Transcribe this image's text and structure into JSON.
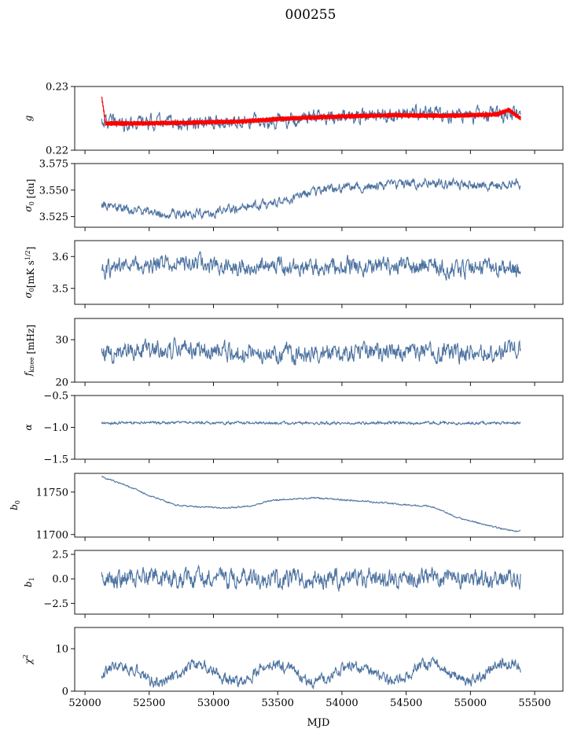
{
  "title": "000255",
  "colors": {
    "series": "#4c72a0",
    "fit": "#ff0000",
    "axis": "#000000"
  },
  "chart_data": {
    "type": "line",
    "title": "000255",
    "xlabel": "MJD",
    "xlim": [
      51920,
      55720
    ],
    "x_ticks": [
      52000,
      52500,
      53000,
      53500,
      54000,
      54500,
      55000,
      55500
    ],
    "x_tick_labels": [
      "52000",
      "52500",
      "53000",
      "53500",
      "54000",
      "54500",
      "55000",
      "55500"
    ],
    "x_range_data": [
      52130,
      55390
    ],
    "panels": [
      {
        "key": "g",
        "ylabel": "g",
        "ylabel_sub": "",
        "ylim": [
          0.22,
          0.23
        ],
        "y_ticks": [
          0.22,
          0.23
        ],
        "y_tick_labels": [
          "0.22",
          "0.23"
        ],
        "series": [
          {
            "color": "#4c72a0",
            "band": false,
            "noise": 0.0009,
            "anchors": [
              [
                52130,
                0.2247
              ],
              [
                52200,
                0.2244
              ],
              [
                52600,
                0.2244
              ],
              [
                52800,
                0.2239
              ],
              [
                53000,
                0.2243
              ],
              [
                53400,
                0.2246
              ],
              [
                53800,
                0.2252
              ],
              [
                54200,
                0.2253
              ],
              [
                54600,
                0.2257
              ],
              [
                55000,
                0.2254
              ],
              [
                55390,
                0.2258
              ]
            ]
          },
          {
            "color": "#ff0000",
            "band": true,
            "noise": 0.0004,
            "anchors": [
              [
                52130,
                0.2285
              ],
              [
                52160,
                0.2242
              ],
              [
                52400,
                0.2242
              ],
              [
                52800,
                0.2243
              ],
              [
                53200,
                0.2245
              ],
              [
                53600,
                0.225
              ],
              [
                54000,
                0.2253
              ],
              [
                54400,
                0.2255
              ],
              [
                54800,
                0.2254
              ],
              [
                55200,
                0.2256
              ],
              [
                55300,
                0.2263
              ],
              [
                55390,
                0.225
              ]
            ]
          }
        ]
      },
      {
        "key": "sigma0_du",
        "ylabel": "σ",
        "ylabel_sub": "0",
        "ylabel_suffix": " [du]",
        "ylim": [
          3.515,
          3.575
        ],
        "y_ticks": [
          3.525,
          3.55,
          3.575
        ],
        "y_tick_labels": [
          "3.525",
          "3.550",
          "3.575"
        ],
        "series": [
          {
            "color": "#4c72a0",
            "band": false,
            "noise": 0.0035,
            "anchors": [
              [
                52130,
                3.537
              ],
              [
                52300,
                3.532
              ],
              [
                52600,
                3.528
              ],
              [
                52900,
                3.528
              ],
              [
                53200,
                3.533
              ],
              [
                53500,
                3.538
              ],
              [
                53700,
                3.546
              ],
              [
                54000,
                3.553
              ],
              [
                54300,
                3.554
              ],
              [
                54500,
                3.556
              ],
              [
                54800,
                3.556
              ],
              [
                55100,
                3.554
              ],
              [
                55390,
                3.557
              ]
            ]
          }
        ]
      },
      {
        "key": "sigma0_mk",
        "ylabel": "σ",
        "ylabel_sub": "0",
        "ylabel_suffix": "[mK s",
        "ylabel_sup": "1/2",
        "ylabel_end": "]",
        "ylim": [
          3.45,
          3.65
        ],
        "y_ticks": [
          3.5,
          3.6
        ],
        "y_tick_labels": [
          "3.5",
          "3.6"
        ],
        "series": [
          {
            "color": "#4c72a0",
            "band": false,
            "noise": 0.022,
            "anchors": [
              [
                52130,
                3.56
              ],
              [
                52700,
                3.58
              ],
              [
                53000,
                3.565
              ],
              [
                53500,
                3.57
              ],
              [
                54000,
                3.565
              ],
              [
                54500,
                3.57
              ],
              [
                55000,
                3.565
              ],
              [
                55390,
                3.56
              ]
            ]
          }
        ]
      },
      {
        "key": "fknee",
        "ylabel": "f",
        "ylabel_sub": "knee",
        "ylabel_suffix": " [mHz]",
        "ylim": [
          20,
          35
        ],
        "y_ticks": [
          20,
          30
        ],
        "y_tick_labels": [
          "20",
          "30"
        ],
        "series": [
          {
            "color": "#4c72a0",
            "band": false,
            "noise": 1.7,
            "anchors": [
              [
                52130,
                27
              ],
              [
                52700,
                28
              ],
              [
                53200,
                27
              ],
              [
                53800,
                26.5
              ],
              [
                54300,
                27.5
              ],
              [
                54800,
                27
              ],
              [
                55390,
                27.5
              ]
            ]
          }
        ]
      },
      {
        "key": "alpha",
        "ylabel": "α",
        "ylabel_sub": "",
        "ylim": [
          -1.5,
          -0.5
        ],
        "y_ticks": [
          -1.5,
          -1.0,
          -0.5
        ],
        "y_tick_labels": [
          "−1.5",
          "−1.0",
          "−0.5"
        ],
        "series": [
          {
            "color": "#4c72a0",
            "band": false,
            "noise": 0.018,
            "anchors": [
              [
                52130,
                -0.93
              ],
              [
                55390,
                -0.93
              ]
            ]
          }
        ]
      },
      {
        "key": "b0",
        "ylabel": "b",
        "ylabel_sub": "0",
        "ylim": [
          11697,
          11772
        ],
        "y_ticks": [
          11700,
          11750
        ],
        "y_tick_labels": [
          "11700",
          "11750"
        ],
        "series": [
          {
            "color": "#4c72a0",
            "band": false,
            "noise": 0.7,
            "anchors": [
              [
                52130,
                11768
              ],
              [
                52300,
                11759
              ],
              [
                52500,
                11746
              ],
              [
                52700,
                11735
              ],
              [
                52800,
                11733
              ],
              [
                53000,
                11732
              ],
              [
                53100,
                11731
              ],
              [
                53300,
                11734
              ],
              [
                53450,
                11740
              ],
              [
                53600,
                11742
              ],
              [
                53800,
                11743
              ],
              [
                54100,
                11740
              ],
              [
                54500,
                11735
              ],
              [
                54700,
                11733
              ],
              [
                54900,
                11720
              ],
              [
                55100,
                11712
              ],
              [
                55300,
                11705
              ],
              [
                55390,
                11704
              ]
            ]
          }
        ]
      },
      {
        "key": "b1",
        "ylabel": "b",
        "ylabel_sub": "1",
        "ylim": [
          -3.6,
          2.9
        ],
        "y_ticks": [
          -2.5,
          0.0,
          2.5
        ],
        "y_tick_labels": [
          "−2.5",
          "0.0",
          "2.5"
        ],
        "series": [
          {
            "color": "#4c72a0",
            "band": false,
            "noise": 0.75,
            "anchors": [
              [
                52130,
                0.0
              ],
              [
                55390,
                0.0
              ]
            ]
          }
        ]
      },
      {
        "key": "chi2",
        "ylabel": "χ",
        "ylabel_sub": "",
        "ylabel_sup": "2",
        "ylim": [
          0,
          15
        ],
        "y_ticks": [
          0,
          10
        ],
        "y_tick_labels": [
          "0",
          "10"
        ],
        "series": [
          {
            "color": "#4c72a0",
            "band": false,
            "noise": 1.1,
            "periodic": [
              2.0,
              600
            ],
            "anchors": [
              [
                52130,
                4.0
              ],
              [
                55390,
                4.5
              ]
            ]
          }
        ]
      }
    ]
  }
}
